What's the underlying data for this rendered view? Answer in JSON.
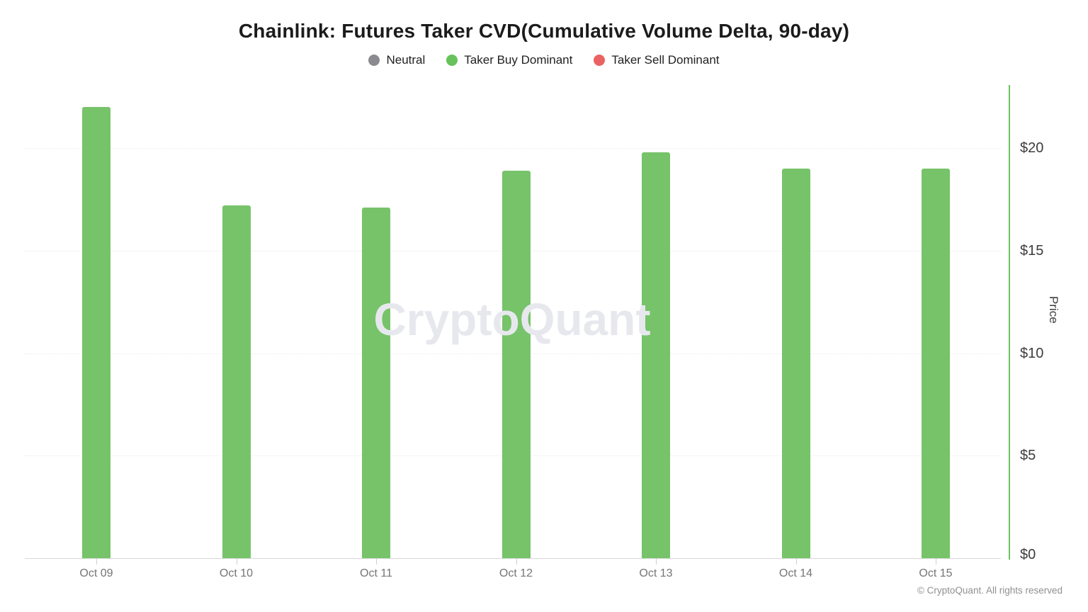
{
  "title": "Chainlink: Futures Taker CVD(Cumulative Volume Delta, 90-day)",
  "legend": {
    "items": [
      {
        "label": "Neutral",
        "color": "#8b8b8f"
      },
      {
        "label": "Taker Buy Dominant",
        "color": "#67c25b"
      },
      {
        "label": "Taker Sell Dominant",
        "color": "#e96363"
      }
    ]
  },
  "chart_data": {
    "type": "bar",
    "title": "Chainlink: Futures Taker CVD(Cumulative Volume Delta, 90-day)",
    "categories": [
      "Oct 09",
      "Oct 10",
      "Oct 11",
      "Oct 12",
      "Oct 13",
      "Oct 14",
      "Oct 15"
    ],
    "series": [
      {
        "name": "Taker Buy Dominant",
        "color": "#77c36a",
        "values": [
          22.0,
          17.2,
          17.1,
          18.9,
          19.8,
          19.0,
          19.0
        ]
      }
    ],
    "xlabel": "",
    "ylabel": "Price",
    "y_ticks": [
      {
        "value": 0,
        "label": "$0"
      },
      {
        "value": 5,
        "label": "$5"
      },
      {
        "value": 10,
        "label": "$10"
      },
      {
        "value": 15,
        "label": "$15"
      },
      {
        "value": 20,
        "label": "$20"
      }
    ],
    "ylim": [
      0,
      23.1
    ],
    "grid": "horizontal-dotted",
    "legend_position": "top",
    "y_axis_side": "right",
    "y_axis_color": "#6cc25e",
    "bar_state_for_all_bars": "Taker Buy Dominant"
  },
  "watermark_text": "CryptoQuant",
  "copyright": "© CryptoQuant. All rights reserved"
}
